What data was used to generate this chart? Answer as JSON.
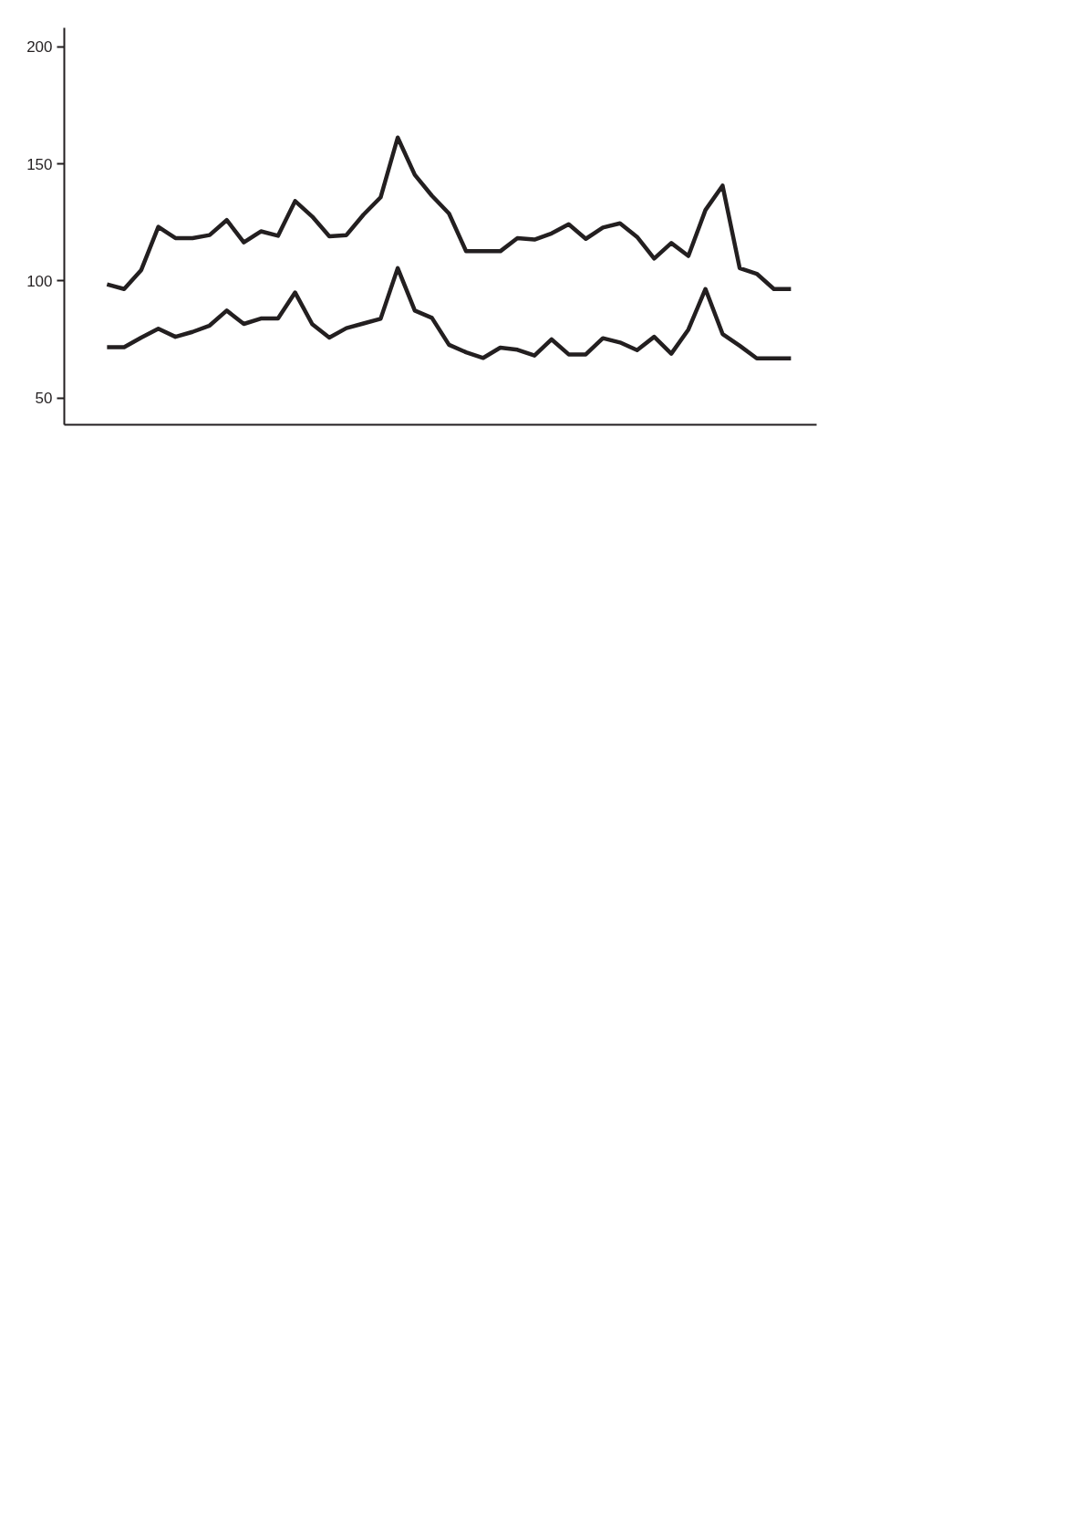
{
  "chart_data": {
    "type": "line",
    "ylim": [
      38.7,
      208
    ],
    "categories": [
      null,
      null,
      null,
      null,
      null,
      null,
      null,
      null,
      null,
      null,
      null,
      null,
      null,
      null,
      null,
      null,
      null,
      null,
      null,
      null,
      null,
      null,
      null,
      null,
      null,
      null,
      null,
      null,
      null,
      null,
      null,
      null,
      null,
      null,
      null,
      null,
      null,
      null,
      null,
      null,
      null
    ],
    "yticks": [
      50,
      100,
      150,
      200
    ],
    "marker": "none",
    "line_style": "solid",
    "series": [
      {
        "color": "#231f20",
        "values": [
          98.6,
          96.6,
          104.7,
          123.1,
          118.3,
          118.3,
          119.6,
          126.0,
          116.5,
          121.2,
          119.3,
          134.1,
          127.5,
          119.1,
          119.6,
          128.3,
          135.7,
          161.2,
          145.3,
          136.4,
          128.8,
          112.7,
          112.7,
          112.7,
          118.3,
          117.7,
          120.3,
          124.2,
          118.0,
          122.8,
          124.6,
          118.8,
          109.6,
          116.2,
          110.7,
          130.3,
          140.7,
          105.5,
          103.1,
          96.6,
          96.6
        ]
      },
      {
        "color": "#231f20",
        "values": [
          71.8,
          71.8,
          75.9,
          79.7,
          76.2,
          78.3,
          81.0,
          87.4,
          81.7,
          84.0,
          84.0,
          95.1,
          81.6,
          75.9,
          79.9,
          81.9,
          83.9,
          105.5,
          87.4,
          84.3,
          72.8,
          69.6,
          67.2,
          71.6,
          70.7,
          68.2,
          75.1,
          68.7,
          68.7,
          75.6,
          73.8,
          70.5,
          76.2,
          69.0,
          79.3,
          96.6,
          77.4,
          72.4,
          67.0,
          67.0,
          67.0
        ]
      }
    ]
  }
}
